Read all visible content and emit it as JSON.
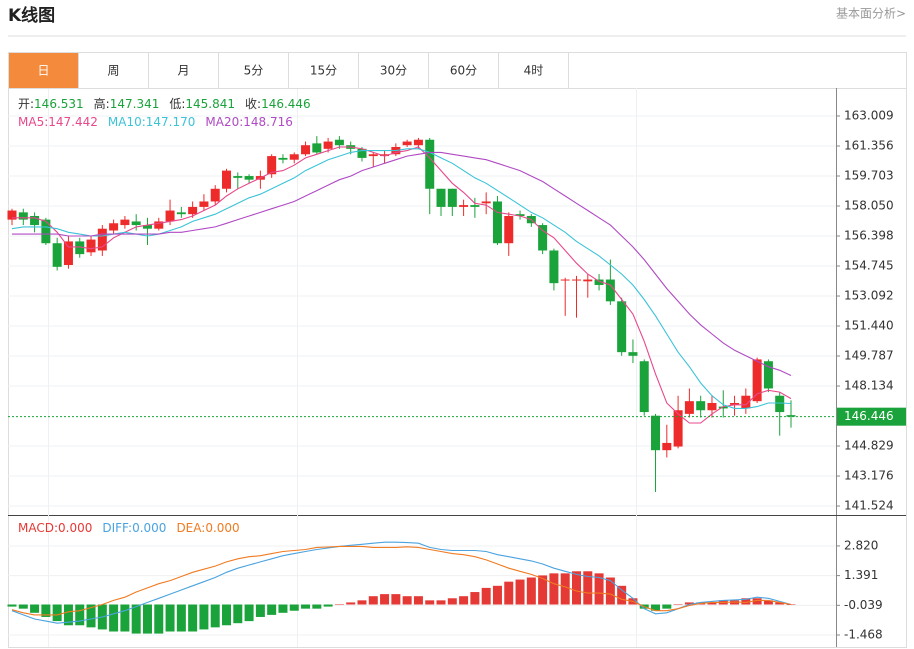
{
  "chart_data": {
    "type": "candlestick",
    "title": "K线图",
    "link": "基本面分析>",
    "tabs": [
      "日",
      "周",
      "月",
      "5分",
      "15分",
      "30分",
      "60分",
      "4时"
    ],
    "active_tab": 0,
    "up_color": "#ee2b2b",
    "down_color": "#1aa33a",
    "ohlc_header": [
      {
        "label": "开:",
        "value": 146.531
      },
      {
        "label": "高:",
        "value": 147.341
      },
      {
        "label": "低:",
        "value": 145.841
      },
      {
        "label": "收:",
        "value": 146.446
      }
    ],
    "open": [
      157.3,
      157.7,
      157.5,
      157.3,
      156.0,
      154.8,
      156.1,
      155.5,
      155.6,
      156.7,
      157.0,
      157.2,
      157.0,
      156.8,
      157.2,
      157.7,
      157.6,
      158.0,
      158.3,
      159.0,
      159.7,
      159.7,
      159.5,
      159.8,
      160.7,
      160.6,
      160.9,
      161.5,
      161.2,
      161.7,
      161.4,
      161.2,
      160.8,
      160.8,
      160.9,
      161.4,
      161.4,
      161.7,
      159.0,
      159.0,
      158.0,
      158.1,
      158.2,
      158.3,
      156.0,
      157.6,
      157.5,
      157.0,
      155.6,
      154.0,
      154.0,
      153.9,
      154.0,
      154.0,
      152.8,
      150.0,
      149.5,
      146.5,
      144.6,
      144.8,
      146.6,
      147.3,
      146.8,
      147.0,
      147.1,
      146.9,
      147.3,
      149.5,
      147.6,
      146.531
    ],
    "high": [
      157.9,
      157.9,
      157.7,
      157.4,
      156.3,
      156.4,
      156.3,
      156.4,
      157.0,
      157.3,
      157.5,
      157.6,
      157.4,
      157.4,
      158.4,
      158.0,
      158.3,
      158.7,
      159.2,
      160.1,
      159.9,
      159.8,
      160.0,
      160.9,
      160.9,
      161.0,
      161.6,
      161.9,
      161.8,
      161.9,
      161.6,
      161.3,
      161.0,
      161.1,
      161.5,
      161.7,
      161.8,
      161.8,
      159.0,
      159.0,
      158.4,
      158.5,
      158.8,
      158.6,
      157.7,
      157.8,
      157.6,
      157.1,
      155.7,
      154.1,
      154.2,
      154.3,
      154.3,
      155.1,
      153.0,
      150.7,
      149.6,
      146.6,
      146.0,
      147.6,
      148.0,
      147.6,
      147.6,
      147.9,
      147.6,
      148.0,
      149.7,
      149.6,
      147.8,
      147.341
    ],
    "low": [
      157.0,
      157.0,
      156.6,
      155.9,
      154.5,
      154.6,
      155.2,
      155.3,
      155.3,
      156.5,
      156.8,
      156.7,
      155.9,
      156.7,
      157.0,
      157.4,
      157.4,
      157.8,
      158.1,
      158.8,
      159.0,
      159.3,
      159.0,
      159.6,
      160.4,
      160.4,
      160.8,
      160.9,
      161.0,
      161.2,
      160.9,
      160.5,
      160.2,
      160.4,
      160.8,
      161.3,
      161.2,
      157.6,
      157.5,
      157.5,
      157.5,
      157.4,
      157.6,
      155.9,
      155.3,
      157.3,
      156.9,
      155.4,
      153.4,
      152.0,
      151.9,
      153.0,
      153.4,
      152.6,
      149.8,
      149.4,
      146.5,
      142.3,
      144.2,
      144.7,
      146.4,
      146.4,
      146.4,
      146.4,
      146.5,
      146.6,
      147.2,
      147.8,
      145.4,
      145.841
    ],
    "close": [
      157.8,
      157.3,
      157.0,
      156.0,
      154.7,
      156.1,
      155.4,
      156.2,
      156.8,
      157.1,
      157.3,
      157.0,
      156.8,
      157.2,
      157.8,
      157.6,
      158.0,
      158.3,
      159.0,
      160.0,
      159.6,
      159.5,
      159.7,
      160.8,
      160.6,
      160.9,
      161.4,
      161.0,
      161.6,
      161.4,
      161.2,
      160.7,
      160.9,
      160.9,
      161.3,
      161.6,
      161.7,
      159.0,
      158.0,
      158.0,
      158.1,
      158.0,
      158.3,
      156.0,
      157.5,
      157.5,
      157.1,
      155.6,
      153.8,
      154.0,
      154.0,
      154.0,
      153.7,
      152.8,
      150.0,
      149.8,
      146.7,
      144.6,
      145.0,
      146.8,
      147.3,
      146.8,
      147.2,
      146.9,
      147.2,
      147.6,
      149.6,
      148.0,
      146.7,
      146.446
    ],
    "series": [
      {
        "name": "MA5:",
        "value": 147.442,
        "color": "#e8488c",
        "values": [
          157.4,
          157.4,
          157.4,
          157.2,
          156.6,
          155.8,
          155.8,
          155.7,
          155.8,
          156.3,
          156.6,
          156.9,
          157.0,
          157.1,
          157.2,
          157.3,
          157.5,
          157.8,
          158.1,
          158.6,
          159.0,
          159.3,
          159.6,
          159.9,
          160.0,
          160.3,
          160.7,
          160.9,
          161.1,
          161.3,
          161.3,
          161.2,
          161.0,
          160.8,
          161.0,
          161.1,
          161.3,
          160.7,
          160.0,
          159.3,
          158.8,
          158.2,
          158.1,
          157.7,
          157.6,
          157.5,
          157.3,
          156.7,
          156.3,
          155.6,
          154.9,
          154.3,
          153.9,
          153.7,
          152.9,
          152.1,
          150.6,
          148.8,
          147.2,
          146.6,
          146.1,
          146.1,
          146.6,
          147.0,
          147.1,
          147.1,
          147.7,
          147.9,
          147.8,
          147.442
        ]
      },
      {
        "name": "MA10:",
        "value": 147.17,
        "value_label": "147.170",
        "color": "#3cc3d8",
        "values": [
          156.8,
          156.9,
          156.9,
          156.9,
          156.8,
          156.6,
          156.5,
          156.4,
          156.4,
          156.5,
          156.6,
          156.5,
          156.4,
          156.5,
          156.7,
          156.9,
          157.2,
          157.4,
          157.6,
          157.9,
          158.2,
          158.5,
          158.7,
          159.0,
          159.3,
          159.6,
          160.0,
          160.3,
          160.6,
          160.8,
          161.0,
          161.1,
          161.1,
          161.1,
          161.1,
          161.2,
          161.2,
          161.0,
          160.7,
          160.4,
          160.0,
          159.6,
          159.3,
          158.9,
          158.5,
          158.1,
          157.7,
          157.4,
          157.0,
          156.6,
          156.1,
          155.7,
          155.3,
          154.8,
          154.3,
          153.7,
          152.9,
          152.0,
          151.0,
          150.0,
          149.2,
          148.3,
          147.6,
          147.1,
          146.9,
          146.9,
          147.0,
          147.2,
          147.2,
          147.17
        ]
      },
      {
        "name": "MA20:",
        "value": 148.716,
        "color": "#b04ac4",
        "values": [
          156.5,
          156.5,
          156.5,
          156.5,
          156.5,
          156.4,
          156.4,
          156.4,
          156.5,
          156.5,
          156.5,
          156.5,
          156.5,
          156.5,
          156.6,
          156.6,
          156.7,
          156.8,
          156.9,
          157.1,
          157.3,
          157.5,
          157.7,
          157.9,
          158.1,
          158.3,
          158.6,
          158.9,
          159.2,
          159.5,
          159.7,
          160.0,
          160.2,
          160.4,
          160.6,
          160.8,
          160.9,
          161.0,
          161.0,
          160.9,
          160.8,
          160.7,
          160.6,
          160.4,
          160.2,
          160.0,
          159.7,
          159.4,
          159.0,
          158.6,
          158.2,
          157.8,
          157.4,
          157.0,
          156.4,
          155.8,
          155.1,
          154.3,
          153.5,
          152.8,
          152.1,
          151.5,
          151.0,
          150.5,
          150.1,
          149.8,
          149.5,
          149.2,
          149.0,
          148.716
        ]
      }
    ],
    "last_price": 146.446,
    "ylim": [
      141.03,
      164.55
    ],
    "yticks": [
      163.009,
      161.356,
      159.703,
      {
        "value": 158.05,
        "label": "158.050"
      },
      156.398,
      154.745,
      153.092,
      {
        "value": 151.44,
        "label": "151.440"
      },
      149.787,
      148.134,
      144.829,
      143.176,
      141.524
    ],
    "macd": {
      "ylim": [
        -1.95,
        4.31
      ],
      "yticks": [
        {
          "value": 2.82,
          "label": "2.820"
        },
        1.391,
        -0.039,
        -1.468
      ],
      "hist": {
        "name": "MACD:",
        "value": 0,
        "value_label": "0.000",
        "color": "#e53935",
        "values": [
          -0.1,
          -0.2,
          -0.4,
          -0.6,
          -0.8,
          -1.0,
          -1.0,
          -1.1,
          -1.2,
          -1.3,
          -1.3,
          -1.4,
          -1.4,
          -1.4,
          -1.3,
          -1.3,
          -1.3,
          -1.2,
          -1.1,
          -1.0,
          -0.9,
          -0.8,
          -0.6,
          -0.5,
          -0.4,
          -0.3,
          -0.2,
          -0.2,
          -0.1,
          0.0,
          0.1,
          0.2,
          0.4,
          0.5,
          0.5,
          0.4,
          0.4,
          0.2,
          0.2,
          0.3,
          0.4,
          0.6,
          0.8,
          0.9,
          1.1,
          1.2,
          1.3,
          1.4,
          1.5,
          1.5,
          1.6,
          1.6,
          1.5,
          1.3,
          0.9,
          0.3,
          -0.2,
          -0.3,
          -0.2,
          0.0,
          0.1,
          0.1,
          0.1,
          0.2,
          0.2,
          0.3,
          0.3,
          0.2,
          0.1,
          0.0
        ]
      },
      "diff": {
        "name": "DIFF:",
        "value": 0,
        "value_label": "0.000",
        "color": "#4aa3df",
        "values": [
          -0.3,
          -0.5,
          -0.7,
          -0.8,
          -0.9,
          -0.85,
          -0.8,
          -0.7,
          -0.6,
          -0.45,
          -0.3,
          -0.1,
          0.1,
          0.3,
          0.5,
          0.7,
          0.9,
          1.1,
          1.3,
          1.55,
          1.75,
          1.9,
          2.05,
          2.2,
          2.35,
          2.45,
          2.55,
          2.65,
          2.72,
          2.8,
          2.85,
          2.9,
          2.95,
          3.0,
          3.0,
          2.98,
          2.95,
          2.75,
          2.65,
          2.6,
          2.6,
          2.6,
          2.55,
          2.4,
          2.3,
          2.2,
          2.1,
          1.95,
          1.75,
          1.6,
          1.45,
          1.35,
          1.3,
          1.15,
          0.7,
          0.3,
          -0.2,
          -0.45,
          -0.4,
          -0.2,
          0.0,
          0.1,
          0.15,
          0.2,
          0.22,
          0.25,
          0.35,
          0.3,
          0.15,
          0.0
        ]
      },
      "dea": {
        "name": "DEA:",
        "value": 0,
        "value_label": "0.000",
        "color": "#f07b22",
        "values": [
          -0.25,
          -0.4,
          -0.5,
          -0.5,
          -0.5,
          -0.35,
          -0.3,
          -0.15,
          0.0,
          0.2,
          0.35,
          0.6,
          0.8,
          1.0,
          1.15,
          1.35,
          1.55,
          1.7,
          1.85,
          2.05,
          2.2,
          2.3,
          2.35,
          2.45,
          2.55,
          2.6,
          2.65,
          2.75,
          2.77,
          2.8,
          2.8,
          2.8,
          2.75,
          2.75,
          2.75,
          2.78,
          2.75,
          2.65,
          2.55,
          2.45,
          2.4,
          2.3,
          2.15,
          1.95,
          1.75,
          1.6,
          1.45,
          1.25,
          1.0,
          0.85,
          0.65,
          0.55,
          0.55,
          0.5,
          0.25,
          0.15,
          -0.1,
          -0.3,
          -0.3,
          -0.2,
          -0.05,
          0.05,
          0.1,
          0.1,
          0.12,
          0.1,
          0.2,
          0.2,
          0.1,
          0.0
        ]
      }
    }
  }
}
